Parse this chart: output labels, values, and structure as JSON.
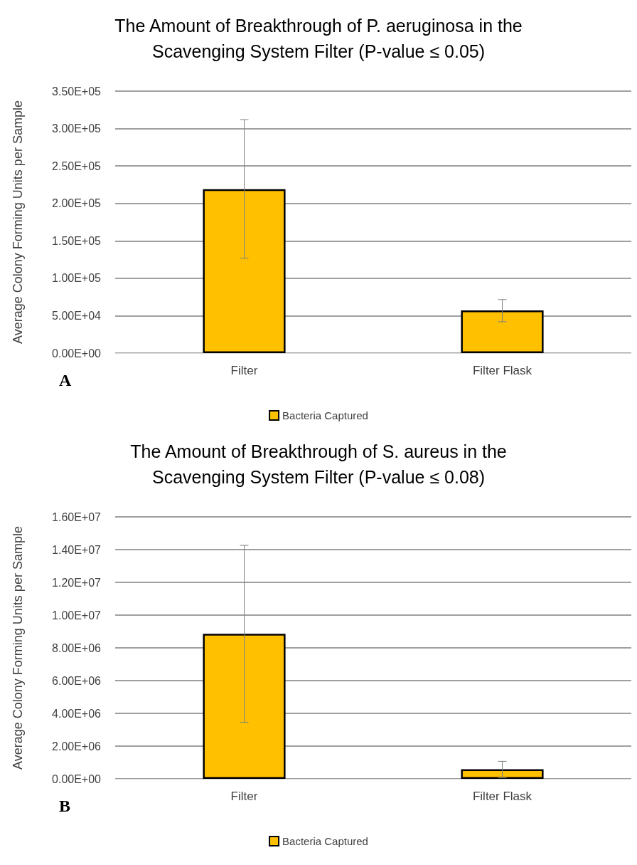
{
  "chart_data": [
    {
      "type": "bar",
      "title": "The Amount of Breakthrough of P. aeruginosa in the\nScavenging System Filter (P-value ≤ 0.05)",
      "ylabel": "Average Colony Forming Units per Sample",
      "categories": [
        "Filter",
        "Filter Flask"
      ],
      "series": [
        {
          "name": "Bacteria Captured",
          "color": "#ffc000",
          "values": [
            219000,
            57000
          ],
          "errors": [
            [
              127000,
              312000
            ],
            [
              42000,
              71500
            ]
          ]
        }
      ],
      "ylim": [
        0,
        350000
      ],
      "yticks": [
        {
          "value": 0,
          "label": "0.00E+00"
        },
        {
          "value": 50000,
          "label": "5.00E+04"
        },
        {
          "value": 100000,
          "label": "1.00E+05"
        },
        {
          "value": 150000,
          "label": "1.50E+05"
        },
        {
          "value": 200000,
          "label": "2.00E+05"
        },
        {
          "value": 250000,
          "label": "2.50E+05"
        },
        {
          "value": 300000,
          "label": "3.00E+05"
        },
        {
          "value": 350000,
          "label": "3.50E+05"
        }
      ],
      "grid": "y",
      "legend": "bottom",
      "annotations": [
        "A"
      ]
    },
    {
      "type": "bar",
      "title": "The Amount of Breakthrough of S. aureus in the\nScavenging System Filter (P-value ≤ 0.08)",
      "ylabel": "Average Colony Forming Units per Sample",
      "categories": [
        "Filter",
        "Filter Flask"
      ],
      "series": [
        {
          "name": "Bacteria Captured",
          "color": "#ffc000",
          "values": [
            8860000,
            590000
          ],
          "errors": [
            [
              3460000,
              14260000
            ],
            [
              60000,
              1070000
            ]
          ]
        }
      ],
      "ylim": [
        0,
        16000000
      ],
      "yticks": [
        {
          "value": 0,
          "label": "0.00E+00"
        },
        {
          "value": 2000000,
          "label": "2.00E+06"
        },
        {
          "value": 4000000,
          "label": "4.00E+06"
        },
        {
          "value": 6000000,
          "label": "6.00E+06"
        },
        {
          "value": 8000000,
          "label": "8.00E+06"
        },
        {
          "value": 10000000,
          "label": "1.00E+07"
        },
        {
          "value": 12000000,
          "label": "1.20E+07"
        },
        {
          "value": 14000000,
          "label": "1.40E+07"
        },
        {
          "value": 16000000,
          "label": "1.60E+07"
        }
      ],
      "grid": "y",
      "legend": "bottom",
      "annotations": [
        "B"
      ]
    }
  ]
}
